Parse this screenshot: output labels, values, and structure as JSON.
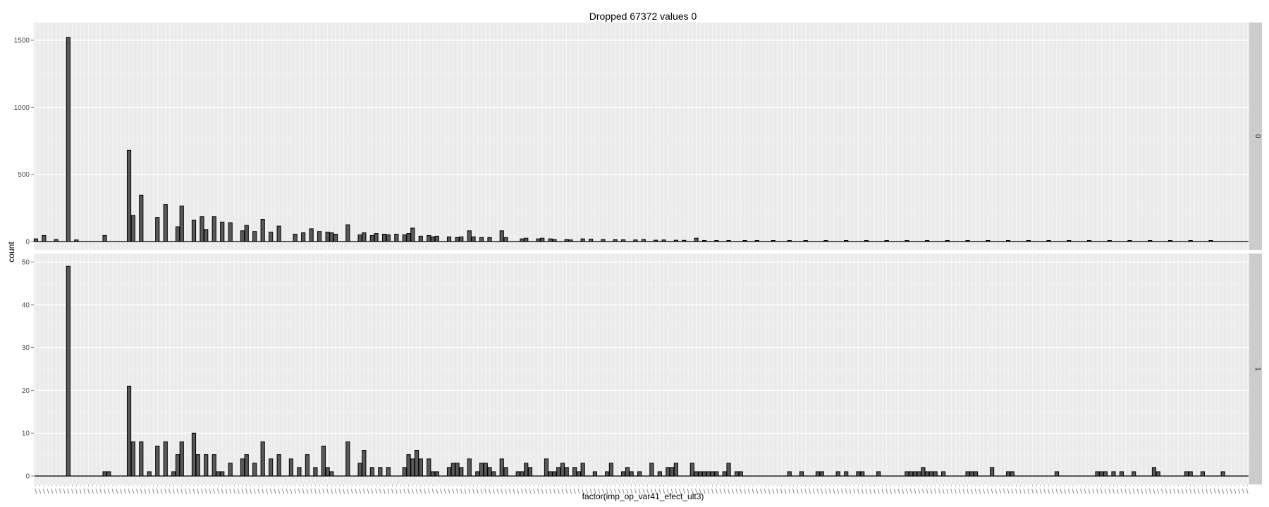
{
  "chart_data": {
    "type": "bar",
    "title": "Dropped 67372 values 0",
    "xlabel": "factor(imp_op_var41_efect_ult3)",
    "ylabel": "count",
    "facet_variable_levels": [
      "0",
      "1"
    ],
    "x_tick_labels_legible": false,
    "panels": [
      {
        "facet": "0",
        "ylim": [
          0,
          1600
        ],
        "yticks": [
          0,
          500,
          1000,
          1500
        ],
        "bars": [
          {
            "x": 0,
            "y": 20
          },
          {
            "x": 2,
            "y": 45
          },
          {
            "x": 5,
            "y": 15
          },
          {
            "x": 8,
            "y": 1520
          },
          {
            "x": 10,
            "y": 12
          },
          {
            "x": 17,
            "y": 45
          },
          {
            "x": 23,
            "y": 680
          },
          {
            "x": 24,
            "y": 195
          },
          {
            "x": 26,
            "y": 345
          },
          {
            "x": 30,
            "y": 180
          },
          {
            "x": 32,
            "y": 275
          },
          {
            "x": 35,
            "y": 110
          },
          {
            "x": 36,
            "y": 265
          },
          {
            "x": 39,
            "y": 160
          },
          {
            "x": 41,
            "y": 185
          },
          {
            "x": 42,
            "y": 90
          },
          {
            "x": 44,
            "y": 185
          },
          {
            "x": 46,
            "y": 145
          },
          {
            "x": 48,
            "y": 140
          },
          {
            "x": 51,
            "y": 80
          },
          {
            "x": 52,
            "y": 120
          },
          {
            "x": 54,
            "y": 75
          },
          {
            "x": 56,
            "y": 165
          },
          {
            "x": 58,
            "y": 70
          },
          {
            "x": 60,
            "y": 115
          },
          {
            "x": 64,
            "y": 55
          },
          {
            "x": 66,
            "y": 65
          },
          {
            "x": 68,
            "y": 95
          },
          {
            "x": 70,
            "y": 75
          },
          {
            "x": 72,
            "y": 70
          },
          {
            "x": 73,
            "y": 65
          },
          {
            "x": 74,
            "y": 55
          },
          {
            "x": 77,
            "y": 125
          },
          {
            "x": 80,
            "y": 50
          },
          {
            "x": 81,
            "y": 65
          },
          {
            "x": 83,
            "y": 45
          },
          {
            "x": 84,
            "y": 60
          },
          {
            "x": 86,
            "y": 55
          },
          {
            "x": 87,
            "y": 50
          },
          {
            "x": 89,
            "y": 55
          },
          {
            "x": 91,
            "y": 50
          },
          {
            "x": 92,
            "y": 60
          },
          {
            "x": 93,
            "y": 100
          },
          {
            "x": 95,
            "y": 40
          },
          {
            "x": 97,
            "y": 45
          },
          {
            "x": 98,
            "y": 35
          },
          {
            "x": 99,
            "y": 40
          },
          {
            "x": 102,
            "y": 35
          },
          {
            "x": 104,
            "y": 30
          },
          {
            "x": 105,
            "y": 35
          },
          {
            "x": 107,
            "y": 80
          },
          {
            "x": 108,
            "y": 35
          },
          {
            "x": 110,
            "y": 30
          },
          {
            "x": 112,
            "y": 30
          },
          {
            "x": 115,
            "y": 80
          },
          {
            "x": 116,
            "y": 30
          },
          {
            "x": 120,
            "y": 20
          },
          {
            "x": 121,
            "y": 25
          },
          {
            "x": 124,
            "y": 20
          },
          {
            "x": 125,
            "y": 25
          },
          {
            "x": 127,
            "y": 20
          },
          {
            "x": 128,
            "y": 15
          },
          {
            "x": 131,
            "y": 15
          },
          {
            "x": 132,
            "y": 12
          },
          {
            "x": 135,
            "y": 20
          },
          {
            "x": 137,
            "y": 18
          },
          {
            "x": 140,
            "y": 15
          },
          {
            "x": 143,
            "y": 14
          },
          {
            "x": 145,
            "y": 13
          },
          {
            "x": 148,
            "y": 12
          },
          {
            "x": 150,
            "y": 15
          },
          {
            "x": 153,
            "y": 10
          },
          {
            "x": 155,
            "y": 12
          },
          {
            "x": 158,
            "y": 10
          },
          {
            "x": 160,
            "y": 9
          },
          {
            "x": 163,
            "y": 25
          },
          {
            "x": 165,
            "y": 8
          },
          {
            "x": 168,
            "y": 7
          },
          {
            "x": 171,
            "y": 6
          },
          {
            "x": 175,
            "y": 8
          },
          {
            "x": 178,
            "y": 5
          },
          {
            "x": 182,
            "y": 6
          },
          {
            "x": 186,
            "y": 4
          },
          {
            "x": 190,
            "y": 5
          },
          {
            "x": 195,
            "y": 4
          },
          {
            "x": 200,
            "y": 3
          },
          {
            "x": 205,
            "y": 3
          },
          {
            "x": 210,
            "y": 3
          },
          {
            "x": 215,
            "y": 2
          },
          {
            "x": 220,
            "y": 2
          },
          {
            "x": 225,
            "y": 2
          },
          {
            "x": 230,
            "y": 2
          },
          {
            "x": 235,
            "y": 2
          },
          {
            "x": 240,
            "y": 2
          },
          {
            "x": 245,
            "y": 1
          },
          {
            "x": 250,
            "y": 1
          },
          {
            "x": 255,
            "y": 1
          },
          {
            "x": 260,
            "y": 1
          },
          {
            "x": 265,
            "y": 1
          },
          {
            "x": 270,
            "y": 1
          },
          {
            "x": 275,
            "y": 1
          },
          {
            "x": 280,
            "y": 1
          },
          {
            "x": 285,
            "y": 1
          },
          {
            "x": 290,
            "y": 1
          }
        ]
      },
      {
        "facet": "1",
        "ylim": [
          0,
          51
        ],
        "yticks": [
          0,
          10,
          20,
          30,
          40,
          50
        ],
        "bars": [
          {
            "x": 8,
            "y": 49
          },
          {
            "x": 17,
            "y": 1
          },
          {
            "x": 18,
            "y": 1
          },
          {
            "x": 23,
            "y": 21
          },
          {
            "x": 24,
            "y": 8
          },
          {
            "x": 26,
            "y": 8
          },
          {
            "x": 28,
            "y": 1
          },
          {
            "x": 30,
            "y": 7
          },
          {
            "x": 32,
            "y": 8
          },
          {
            "x": 34,
            "y": 1
          },
          {
            "x": 35,
            "y": 5
          },
          {
            "x": 36,
            "y": 8
          },
          {
            "x": 39,
            "y": 10
          },
          {
            "x": 40,
            "y": 5
          },
          {
            "x": 42,
            "y": 5
          },
          {
            "x": 44,
            "y": 5
          },
          {
            "x": 45,
            "y": 1
          },
          {
            "x": 46,
            "y": 1
          },
          {
            "x": 48,
            "y": 3
          },
          {
            "x": 51,
            "y": 4
          },
          {
            "x": 52,
            "y": 5
          },
          {
            "x": 54,
            "y": 3
          },
          {
            "x": 56,
            "y": 8
          },
          {
            "x": 58,
            "y": 4
          },
          {
            "x": 60,
            "y": 5
          },
          {
            "x": 63,
            "y": 4
          },
          {
            "x": 65,
            "y": 2
          },
          {
            "x": 67,
            "y": 5
          },
          {
            "x": 69,
            "y": 2
          },
          {
            "x": 71,
            "y": 7
          },
          {
            "x": 72,
            "y": 2
          },
          {
            "x": 73,
            "y": 1
          },
          {
            "x": 77,
            "y": 8
          },
          {
            "x": 80,
            "y": 3
          },
          {
            "x": 81,
            "y": 6
          },
          {
            "x": 83,
            "y": 2
          },
          {
            "x": 85,
            "y": 2
          },
          {
            "x": 87,
            "y": 2
          },
          {
            "x": 91,
            "y": 2
          },
          {
            "x": 92,
            "y": 5
          },
          {
            "x": 93,
            "y": 4
          },
          {
            "x": 94,
            "y": 6
          },
          {
            "x": 95,
            "y": 4
          },
          {
            "x": 97,
            "y": 4
          },
          {
            "x": 98,
            "y": 1
          },
          {
            "x": 99,
            "y": 1
          },
          {
            "x": 102,
            "y": 2
          },
          {
            "x": 103,
            "y": 3
          },
          {
            "x": 104,
            "y": 3
          },
          {
            "x": 105,
            "y": 2
          },
          {
            "x": 107,
            "y": 4
          },
          {
            "x": 109,
            "y": 1
          },
          {
            "x": 110,
            "y": 3
          },
          {
            "x": 111,
            "y": 3
          },
          {
            "x": 112,
            "y": 2
          },
          {
            "x": 113,
            "y": 1
          },
          {
            "x": 115,
            "y": 4
          },
          {
            "x": 116,
            "y": 2
          },
          {
            "x": 119,
            "y": 1
          },
          {
            "x": 120,
            "y": 1
          },
          {
            "x": 121,
            "y": 3
          },
          {
            "x": 122,
            "y": 2
          },
          {
            "x": 126,
            "y": 4
          },
          {
            "x": 127,
            "y": 1
          },
          {
            "x": 128,
            "y": 1
          },
          {
            "x": 129,
            "y": 2
          },
          {
            "x": 130,
            "y": 3
          },
          {
            "x": 131,
            "y": 2
          },
          {
            "x": 133,
            "y": 2
          },
          {
            "x": 134,
            "y": 1
          },
          {
            "x": 135,
            "y": 3
          },
          {
            "x": 138,
            "y": 1
          },
          {
            "x": 141,
            "y": 1
          },
          {
            "x": 142,
            "y": 3
          },
          {
            "x": 145,
            "y": 1
          },
          {
            "x": 146,
            "y": 2
          },
          {
            "x": 147,
            "y": 1
          },
          {
            "x": 149,
            "y": 1
          },
          {
            "x": 152,
            "y": 3
          },
          {
            "x": 154,
            "y": 1
          },
          {
            "x": 156,
            "y": 2
          },
          {
            "x": 157,
            "y": 2
          },
          {
            "x": 158,
            "y": 3
          },
          {
            "x": 162,
            "y": 3
          },
          {
            "x": 163,
            "y": 1
          },
          {
            "x": 164,
            "y": 1
          },
          {
            "x": 165,
            "y": 1
          },
          {
            "x": 166,
            "y": 1
          },
          {
            "x": 167,
            "y": 1
          },
          {
            "x": 168,
            "y": 1
          },
          {
            "x": 170,
            "y": 1
          },
          {
            "x": 171,
            "y": 3
          },
          {
            "x": 173,
            "y": 1
          },
          {
            "x": 174,
            "y": 1
          },
          {
            "x": 186,
            "y": 1
          },
          {
            "x": 189,
            "y": 1
          },
          {
            "x": 193,
            "y": 1
          },
          {
            "x": 194,
            "y": 1
          },
          {
            "x": 198,
            "y": 1
          },
          {
            "x": 200,
            "y": 1
          },
          {
            "x": 203,
            "y": 1
          },
          {
            "x": 204,
            "y": 1
          },
          {
            "x": 208,
            "y": 1
          },
          {
            "x": 215,
            "y": 1
          },
          {
            "x": 216,
            "y": 1
          },
          {
            "x": 217,
            "y": 1
          },
          {
            "x": 218,
            "y": 1
          },
          {
            "x": 219,
            "y": 2
          },
          {
            "x": 220,
            "y": 1
          },
          {
            "x": 221,
            "y": 1
          },
          {
            "x": 222,
            "y": 1
          },
          {
            "x": 224,
            "y": 1
          },
          {
            "x": 230,
            "y": 1
          },
          {
            "x": 231,
            "y": 1
          },
          {
            "x": 232,
            "y": 1
          },
          {
            "x": 236,
            "y": 2
          },
          {
            "x": 240,
            "y": 1
          },
          {
            "x": 241,
            "y": 1
          },
          {
            "x": 252,
            "y": 1
          },
          {
            "x": 262,
            "y": 1
          },
          {
            "x": 263,
            "y": 1
          },
          {
            "x": 264,
            "y": 1
          },
          {
            "x": 266,
            "y": 1
          },
          {
            "x": 268,
            "y": 1
          },
          {
            "x": 271,
            "y": 1
          },
          {
            "x": 276,
            "y": 2
          },
          {
            "x": 277,
            "y": 1
          },
          {
            "x": 284,
            "y": 1
          },
          {
            "x": 285,
            "y": 1
          },
          {
            "x": 288,
            "y": 1
          },
          {
            "x": 293,
            "y": 1
          }
        ]
      }
    ]
  }
}
